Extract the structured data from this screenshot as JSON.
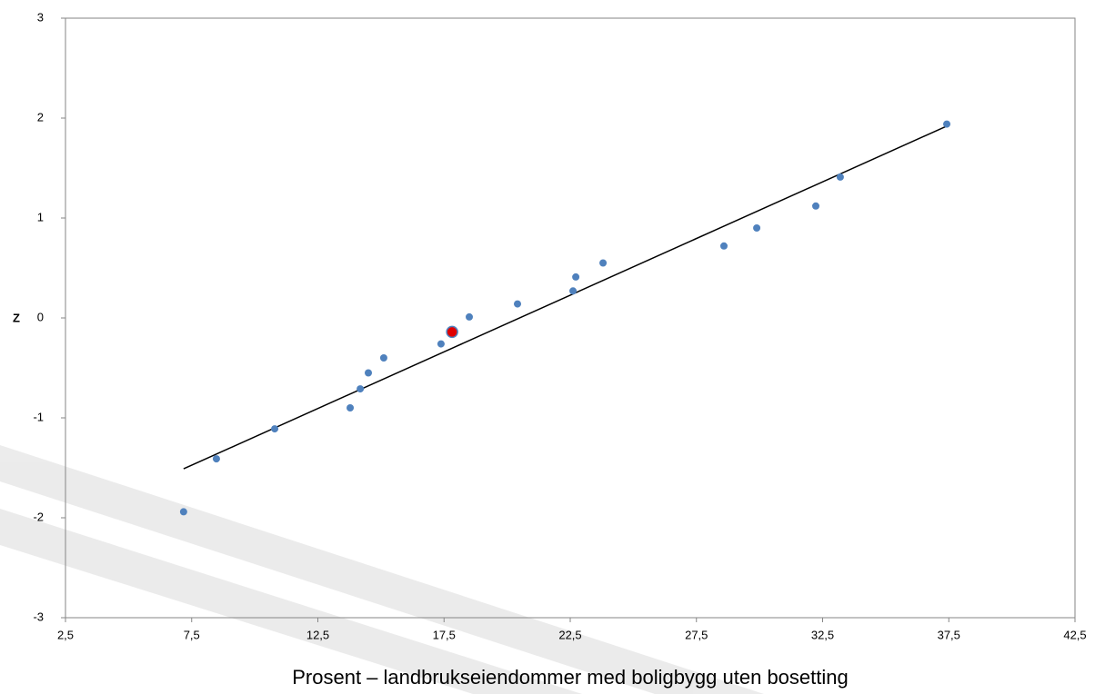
{
  "chart_data": {
    "type": "scatter",
    "x_label": "Prosent – landbrukseiendommer med boligbygg uten bosetting",
    "y_label": "Z",
    "xlim": [
      2.5,
      42.5
    ],
    "ylim": [
      -3,
      3
    ],
    "xticks": [
      {
        "value": 2.5,
        "label": "2,5"
      },
      {
        "value": 7.5,
        "label": "7,5"
      },
      {
        "value": 12.5,
        "label": "12,5"
      },
      {
        "value": 17.5,
        "label": "17,5"
      },
      {
        "value": 22.5,
        "label": "22,5"
      },
      {
        "value": 27.5,
        "label": "27,5"
      },
      {
        "value": 32.5,
        "label": "32,5"
      },
      {
        "value": 37.5,
        "label": "37,5"
      },
      {
        "value": 42.5,
        "label": "42,5"
      }
    ],
    "yticks": [
      -3,
      -2,
      -1,
      0,
      1,
      2,
      3
    ],
    "grid": false,
    "series": [
      {
        "kind": "line",
        "color": "#000000",
        "x": [
          7.18,
          37.42
        ],
        "values": [
          -1.51,
          1.92
        ]
      },
      {
        "kind": "points",
        "color": "#4f81bd",
        "x": [
          7.18,
          8.48,
          10.79,
          13.78,
          14.18,
          14.5,
          15.11,
          17.38,
          18.5,
          20.41,
          22.61,
          22.72,
          23.8,
          28.59,
          29.89,
          32.23,
          33.2,
          37.42
        ],
        "values": [
          -1.94,
          -1.41,
          -1.11,
          -0.9,
          -0.71,
          -0.55,
          -0.4,
          -0.26,
          0.01,
          0.14,
          0.27,
          0.41,
          0.55,
          0.72,
          0.9,
          1.12,
          1.41,
          1.94
        ]
      },
      {
        "kind": "highlight",
        "color": "#e00000",
        "x": [
          17.82
        ],
        "values": [
          -0.14
        ]
      }
    ]
  }
}
